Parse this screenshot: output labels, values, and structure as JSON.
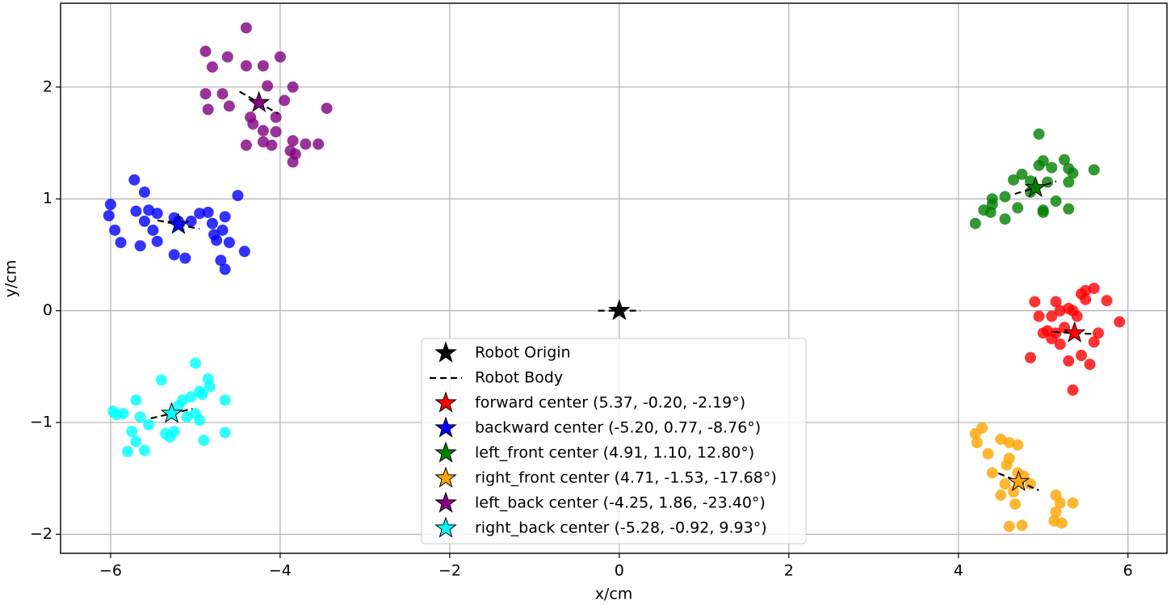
{
  "chart_data": {
    "type": "scatter",
    "xlabel": "x/cm",
    "ylabel": "y/cm",
    "xlim": [
      -6.59,
      6.46
    ],
    "ylim": [
      -2.17,
      2.75
    ],
    "xticks": [
      {
        "value": -6,
        "label": "−6"
      },
      {
        "value": -4,
        "label": "−4"
      },
      {
        "value": -2,
        "label": "−2"
      },
      0,
      2,
      4,
      6
    ],
    "yticks": [
      {
        "value": -2,
        "label": "−2"
      },
      {
        "value": -1,
        "label": "−1"
      },
      0,
      1,
      2
    ],
    "grid": true,
    "legend": "lower center",
    "origin": {
      "name": "Robot Origin",
      "color": "black",
      "x": 0,
      "y": 0,
      "heading": 0
    },
    "body": {
      "name": "Robot Body"
    },
    "series": [
      {
        "name": "forward center (5.37, -0.20, -2.19°)",
        "color": "red",
        "center_x": 5.37,
        "center_y": -0.2,
        "heading": -2.19,
        "x": [
          5.2,
          5.1,
          5.35,
          5.5,
          5.5,
          5.6,
          5.45,
          5.75,
          5.9,
          5.65,
          5.6,
          5.15,
          5.05,
          4.95,
          4.9,
          5.15,
          4.85,
          5.2,
          5.45,
          5.55,
          5.3,
          5.35,
          5.1,
          5.4,
          5.25,
          5.0,
          5.3
        ],
        "y": [
          0.0,
          -0.05,
          0.0,
          0.1,
          0.18,
          0.2,
          0.15,
          0.09,
          -0.1,
          -0.2,
          -0.28,
          -0.2,
          -0.18,
          -0.05,
          0.08,
          0.08,
          -0.42,
          -0.3,
          -0.4,
          -0.48,
          -0.45,
          -0.71,
          -0.25,
          -0.05,
          -0.15,
          -0.2,
          0.02
        ]
      },
      {
        "name": "backward center (-5.20, 0.77, -8.76°)",
        "color": "blue",
        "center_x": -5.2,
        "center_y": 0.77,
        "heading": -8.76,
        "x": [
          -6.0,
          -6.02,
          -5.95,
          -5.88,
          -5.72,
          -5.6,
          -5.7,
          -5.55,
          -5.45,
          -5.6,
          -5.65,
          -5.45,
          -5.25,
          -5.12,
          -5.2,
          -5.05,
          -4.95,
          -4.85,
          -4.8,
          -4.65,
          -4.75,
          -4.78,
          -4.68,
          -4.6,
          -4.7,
          -4.65,
          -4.5,
          -4.42,
          -5.25,
          -5.5
        ],
        "y": [
          0.95,
          0.85,
          0.72,
          0.61,
          1.17,
          1.06,
          0.89,
          0.9,
          0.87,
          0.8,
          0.58,
          0.62,
          0.5,
          0.47,
          0.8,
          0.8,
          0.87,
          0.88,
          0.78,
          0.84,
          0.63,
          0.68,
          0.72,
          0.61,
          0.45,
          0.37,
          1.03,
          0.53,
          0.83,
          0.72
        ]
      },
      {
        "name": "left_front center (4.91, 1.10, 12.80°)",
        "color": "green",
        "center_x": 4.91,
        "center_y": 1.1,
        "heading": 12.8,
        "x": [
          4.2,
          4.3,
          4.4,
          4.38,
          4.55,
          4.55,
          4.65,
          4.75,
          4.7,
          4.85,
          4.95,
          5.0,
          4.95,
          5.1,
          5.05,
          5.15,
          5.0,
          5.0,
          5.25,
          5.3,
          5.35,
          5.3,
          5.3,
          5.6,
          4.85,
          4.4
        ],
        "y": [
          0.78,
          0.9,
          0.95,
          0.88,
          0.82,
          1.02,
          1.17,
          1.22,
          0.92,
          1.06,
          1.3,
          1.34,
          1.58,
          1.28,
          1.15,
          0.98,
          0.9,
          0.88,
          1.35,
          1.27,
          1.23,
          1.15,
          0.91,
          1.26,
          1.16,
          1.0
        ]
      },
      {
        "name": "right_front center (4.71, -1.53, -17.68°)",
        "color": "orange",
        "center_x": 4.71,
        "center_y": -1.53,
        "heading": -17.68,
        "x": [
          4.2,
          4.28,
          4.22,
          4.35,
          4.4,
          4.5,
          4.6,
          4.7,
          4.57,
          4.6,
          4.7,
          4.55,
          4.5,
          4.65,
          4.67,
          4.6,
          4.75,
          4.85,
          5.15,
          5.2,
          5.35,
          5.15,
          5.13,
          5.22,
          4.77
        ],
        "y": [
          -1.1,
          -1.05,
          -1.18,
          -1.28,
          -1.45,
          -1.15,
          -1.18,
          -1.2,
          -1.38,
          -1.32,
          -1.45,
          -1.55,
          -1.65,
          -1.62,
          -1.73,
          -1.93,
          -1.92,
          -1.55,
          -1.65,
          -1.72,
          -1.72,
          -1.8,
          -1.88,
          -1.9,
          -1.48
        ]
      },
      {
        "name": "left_back center (-4.25, 1.86, -23.40°)",
        "color": "purple",
        "center_x": -4.25,
        "center_y": 1.86,
        "heading": -23.4,
        "x": [
          -4.88,
          -4.8,
          -4.62,
          -4.4,
          -4.4,
          -4.2,
          -4.0,
          -4.15,
          -4.88,
          -4.85,
          -4.68,
          -4.6,
          -4.35,
          -4.32,
          -4.2,
          -4.05,
          -4.05,
          -3.95,
          -3.85,
          -3.45,
          -3.85,
          -3.88,
          -3.82,
          -3.85,
          -3.7,
          -3.55,
          -4.1,
          -4.2,
          -4.4
        ],
        "y": [
          2.32,
          2.18,
          2.27,
          2.53,
          2.19,
          2.19,
          2.27,
          2.01,
          1.94,
          1.8,
          1.94,
          1.83,
          1.73,
          1.67,
          1.61,
          1.6,
          1.73,
          1.88,
          2.0,
          1.81,
          1.52,
          1.43,
          1.4,
          1.33,
          1.49,
          1.49,
          1.48,
          1.51,
          1.48
        ]
      },
      {
        "name": "right_back center (-5.28, -0.92, 9.93°)",
        "color": "cyan",
        "center_x": -5.28,
        "center_y": -0.92,
        "heading": 9.93,
        "x": [
          -5.97,
          -5.93,
          -5.85,
          -5.8,
          -5.75,
          -5.7,
          -5.7,
          -5.65,
          -5.6,
          -5.55,
          -5.4,
          -5.35,
          -5.3,
          -5.25,
          -5.2,
          -5.15,
          -5.1,
          -5.0,
          -4.95,
          -4.92,
          -4.85,
          -4.83,
          -4.9,
          -4.95,
          -5.05,
          -4.65,
          -4.65,
          -5.0
        ],
        "y": [
          -0.9,
          -0.93,
          -0.92,
          -1.26,
          -1.08,
          -1.17,
          -0.8,
          -0.95,
          -1.25,
          -1.02,
          -0.62,
          -1.1,
          -1.13,
          -1.08,
          -0.85,
          -0.8,
          -0.95,
          -0.92,
          -0.98,
          -0.75,
          -0.61,
          -0.68,
          -1.16,
          -0.72,
          -0.77,
          -0.8,
          -1.09,
          -0.47
        ]
      }
    ]
  }
}
